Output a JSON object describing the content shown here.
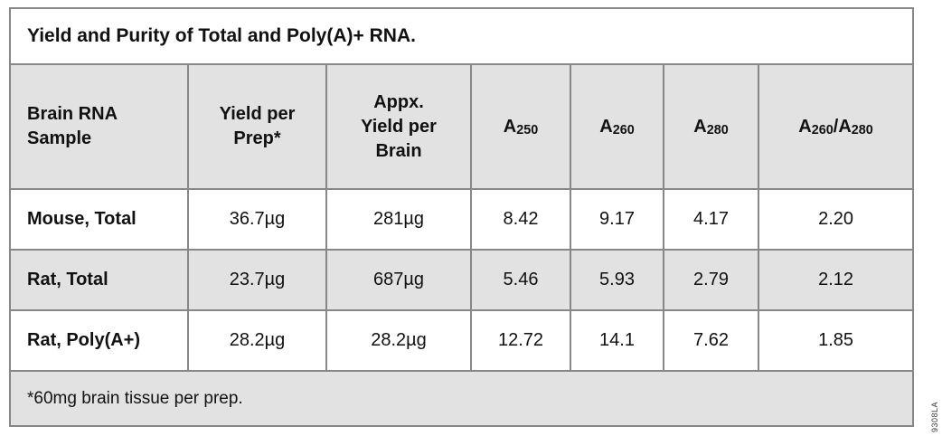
{
  "title": "Yield and Purity of Total and Poly(A)+ RNA.",
  "colors": {
    "shaded_bg": "#e2e2e2",
    "border": "#878787",
    "text": "#111111",
    "page_bg": "#ffffff"
  },
  "table": {
    "columns": {
      "sample": "Brain RNA\nSample",
      "yield_per_prep": "Yield per\nPrep*",
      "yield_per_brain": "Appx.\nYield per\nBrain",
      "a250": {
        "base": "A",
        "sub": "250"
      },
      "a260": {
        "base": "A",
        "sub": "260"
      },
      "a280": {
        "base": "A",
        "sub": "280"
      },
      "ratio": {
        "base1": "A",
        "sub1": "260",
        "base2": "/A",
        "sub2": "280"
      }
    },
    "rows": [
      {
        "sample": "Mouse, Total",
        "yield_per_prep": "36.7µg",
        "yield_per_brain": "281µg",
        "a250": "8.42",
        "a260": "9.17",
        "a280": "4.17",
        "ratio": "2.20"
      },
      {
        "sample": "Rat, Total",
        "yield_per_prep": "23.7µg",
        "yield_per_brain": "687µg",
        "a250": "5.46",
        "a260": "5.93",
        "a280": "2.79",
        "ratio": "2.12"
      },
      {
        "sample": "Rat, Poly(A+)",
        "yield_per_prep": "28.2µg",
        "yield_per_brain": "28.2µg",
        "a250": "12.72",
        "a260": "14.1",
        "a280": "7.62",
        "ratio": "1.85"
      }
    ],
    "footnote": "*60mg brain tissue per prep."
  },
  "watermark": "9308LA"
}
